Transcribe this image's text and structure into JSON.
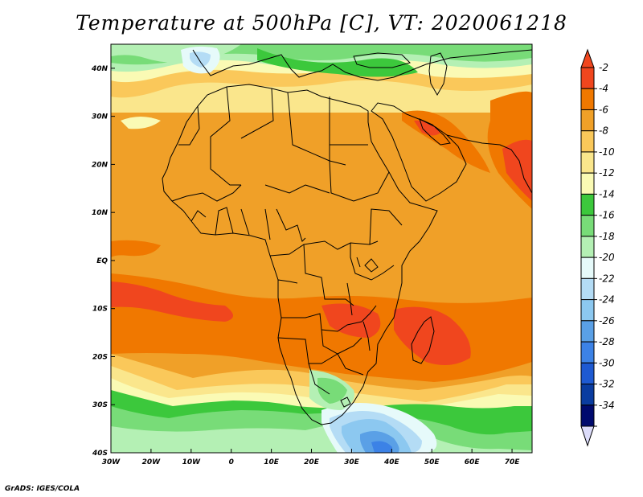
{
  "title": "Temperature at 500hPa [C], VT: 2020061218",
  "credit": "GrADS: IGES/COLA",
  "map": {
    "lon_ticks": [
      "30W",
      "20W",
      "10W",
      "0",
      "10E",
      "20E",
      "30E",
      "40E",
      "50E",
      "60E",
      "70E"
    ],
    "lat_ticks": [
      "40N",
      "30N",
      "20N",
      "10N",
      "EQ",
      "10S",
      "20S",
      "30S",
      "40S"
    ],
    "lon_range": [
      -30,
      75
    ],
    "lat_range": [
      -40,
      45
    ]
  },
  "legend": {
    "arrow_top_color": "#f0461e",
    "arrow_bottom_color": "#dcdcfa",
    "bins": [
      {
        "label": "-2",
        "color": "#f0461e"
      },
      {
        "label": "-4",
        "color": "#f07800"
      },
      {
        "label": "-6",
        "color": "#f0a028"
      },
      {
        "label": "-8",
        "color": "#fac85a"
      },
      {
        "label": "-10",
        "color": "#fae68c"
      },
      {
        "label": "-12",
        "color": "#fafab4"
      },
      {
        "label": "-14",
        "color": "#3cc83c"
      },
      {
        "label": "-16",
        "color": "#78dc78"
      },
      {
        "label": "-18",
        "color": "#b4f0b4"
      },
      {
        "label": "-20",
        "color": "#e6fafa"
      },
      {
        "label": "-22",
        "color": "#b4dcf5"
      },
      {
        "label": "-24",
        "color": "#8cc8f0"
      },
      {
        "label": "-26",
        "color": "#5aa0e6"
      },
      {
        "label": "-28",
        "color": "#3c82e6"
      },
      {
        "label": "-30",
        "color": "#1e5ad2"
      },
      {
        "label": "-32",
        "color": "#0a3ca0"
      },
      {
        "label": "-34",
        "color": "#000a6e"
      }
    ]
  }
}
